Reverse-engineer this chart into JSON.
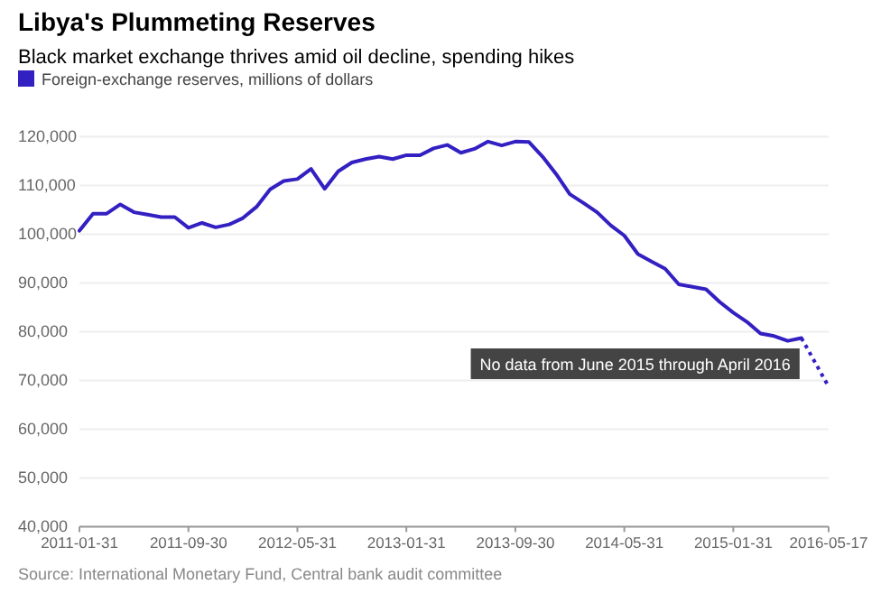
{
  "chart_data": {
    "type": "line",
    "title": "Libya's Plummeting Reserves",
    "subtitle": "Black market exchange thrives amid oil decline, spending hikes",
    "categories": [
      "2011-01-31",
      null,
      null,
      null,
      null,
      null,
      null,
      null,
      "2011-09-30",
      null,
      null,
      null,
      null,
      null,
      null,
      null,
      "2012-05-31",
      null,
      null,
      null,
      null,
      null,
      null,
      null,
      "2013-01-31",
      null,
      null,
      null,
      null,
      null,
      null,
      null,
      "2013-09-30",
      null,
      null,
      null,
      null,
      null,
      null,
      null,
      "2014-05-31",
      null,
      null,
      null,
      null,
      null,
      null,
      null,
      "2015-01-31",
      null,
      null,
      null,
      null,
      null,
      null,
      "2016-05-17"
    ],
    "series": [
      {
        "name": "Foreign-exchange reserves, millions of dollars",
        "color": "#3320c2",
        "values": [
          100700,
          104200,
          104200,
          106100,
          104500,
          104000,
          103500,
          103500,
          101300,
          102300,
          101400,
          102000,
          103300,
          105600,
          109200,
          110900,
          111300,
          113400,
          109300,
          112900,
          114700,
          115400,
          115900,
          115400,
          116200,
          116200,
          117600,
          118300,
          116700,
          117500,
          119000,
          118200,
          119000,
          118900,
          115900,
          112300,
          108200,
          106400,
          104500,
          101800,
          99700,
          95900,
          94400,
          92900,
          89700,
          89200,
          88700,
          86100,
          83900,
          82000,
          79600,
          79100,
          78100,
          78700,
          null,
          null
        ]
      },
      {
        "color": "#3320c2",
        "line_style": "dotted",
        "values": [
          null,
          null,
          null,
          null,
          null,
          null,
          null,
          null,
          null,
          null,
          null,
          null,
          null,
          null,
          null,
          null,
          null,
          null,
          null,
          null,
          null,
          null,
          null,
          null,
          null,
          null,
          null,
          null,
          null,
          null,
          null,
          null,
          null,
          null,
          null,
          null,
          null,
          null,
          null,
          null,
          null,
          null,
          null,
          null,
          null,
          null,
          null,
          null,
          null,
          null,
          null,
          null,
          null,
          78700,
          null,
          68700
        ]
      }
    ],
    "ylim": [
      40000,
      120000
    ],
    "yticks": [
      {
        "value": 40000,
        "label": "40,000"
      },
      {
        "value": 50000,
        "label": "50,000"
      },
      {
        "value": 60000,
        "label": "60,000"
      },
      {
        "value": 70000,
        "label": "70,000"
      },
      {
        "value": 80000,
        "label": "80,000"
      },
      {
        "value": 90000,
        "label": "90,000"
      },
      {
        "value": 100000,
        "label": "100,000"
      },
      {
        "value": 110000,
        "label": "110,000"
      },
      {
        "value": 120000,
        "label": "120,000"
      }
    ],
    "grid": "y",
    "legend": "top left",
    "line_style": "solid",
    "marker": "none",
    "annotations": [
      "No data from June 2015 through April 2016",
      "Source: International Monetary Fund, Central bank audit committee"
    ]
  }
}
